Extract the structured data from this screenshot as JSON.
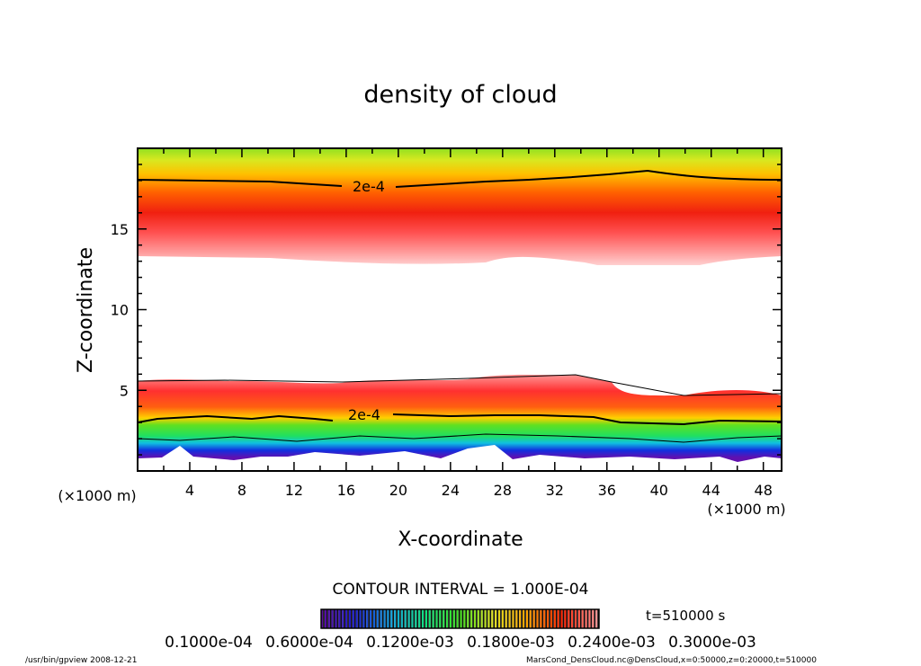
{
  "chart_data": {
    "type": "heatmap",
    "title": "density of cloud",
    "xlabel": "X-coordinate",
    "ylabel": "Z-coordinate",
    "x_unit_left": "(×1000 m)",
    "x_unit_right": "(×1000 m)",
    "xlim": [
      0,
      49.4
    ],
    "ylim": [
      0,
      20
    ],
    "xticks": [
      4,
      8,
      12,
      16,
      20,
      24,
      28,
      32,
      36,
      40,
      44,
      48
    ],
    "yticks": [
      5,
      10,
      15
    ],
    "contour_labels": [
      "2e-4",
      "2e-4"
    ],
    "contour_interval": "CONTOUR INTERVAL = 1.000E-04",
    "colorbar_labels": [
      "0.1000e-04",
      "0.6000e-04",
      "0.1200e-03",
      "0.1800e-03",
      "0.2400e-03",
      "0.3000e-03"
    ],
    "colorbar_colors": [
      "#5a0aa0",
      "#1a20d0",
      "#10a0e0",
      "#10e080",
      "#40e020",
      "#e0e020",
      "#ffa000",
      "#ff2000",
      "#ff9090"
    ],
    "time_label": "t=510000 s",
    "upper_band": {
      "z_bottom_range": [
        12.1,
        13.4
      ],
      "z_top": 20,
      "contour_2e4_z": [
        18,
        17.8,
        18.5,
        18
      ]
    },
    "lower_band": {
      "z_top_range": [
        5.0,
        6.0
      ],
      "z_bottom": 0.8,
      "contour_2e4_z": [
        3,
        3.5,
        3.4,
        3.1
      ]
    }
  },
  "footer": {
    "program": "/usr/bin/gpview   2008-12-21",
    "source": "MarsCond_DensCloud.nc@DensCloud,x=0:50000,z=0:20000,t=510000"
  }
}
